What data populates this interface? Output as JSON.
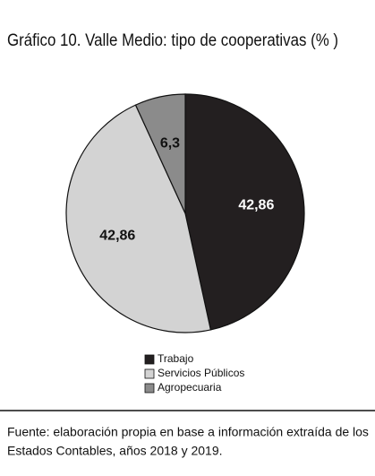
{
  "chart_data": {
    "type": "pie",
    "title": "Gráfico 10. Valle Medio: tipo de cooperativas (% )",
    "categories": [
      "Trabajo",
      "Servicios Públicos",
      "Agropecuaria"
    ],
    "values": [
      42.86,
      42.86,
      6.3
    ],
    "value_labels": [
      "42,86",
      "42,86",
      "6,3"
    ],
    "colors": [
      "#231f20",
      "#d3d3d3",
      "#8b8b8b"
    ],
    "label_colors": [
      "#ffffff",
      "#111111",
      "#111111"
    ],
    "source": [
      "Fuente: elaboración propia en base a información extraída de los",
      "Estados Contables, años 2018 y 2019."
    ]
  }
}
